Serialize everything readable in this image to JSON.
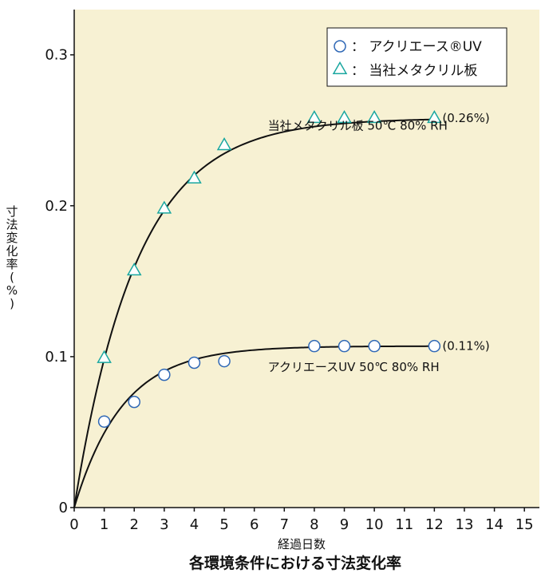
{
  "chart_data": {
    "type": "scatter",
    "title": "各環境条件における寸法変化率",
    "xlabel": "経過日数",
    "ylabel": "寸法変化率(%)",
    "xlim": [
      0,
      15.5
    ],
    "ylim": [
      0,
      0.33
    ],
    "x_ticks": [
      0,
      1,
      2,
      3,
      4,
      5,
      6,
      7,
      8,
      9,
      10,
      11,
      12,
      13,
      14,
      15
    ],
    "y_ticks": [
      0,
      0.1,
      0.2,
      0.3
    ],
    "y_tick_labels": [
      "0",
      "0.1",
      "0.2",
      "0.3"
    ],
    "grid": false,
    "legend_position": "top-right",
    "background_color": "#f7f1d3",
    "series": [
      {
        "name": "アクリエース®UV",
        "legend_label": "：  アクリエース®UV",
        "marker": "circle",
        "marker_color": "#2f68b6",
        "x": [
          1,
          2,
          3,
          4,
          5,
          8,
          9,
          10,
          12
        ],
        "y": [
          0.057,
          0.07,
          0.088,
          0.096,
          0.097,
          0.107,
          0.107,
          0.107,
          0.107
        ],
        "curve_plateau": 0.107,
        "curve_rate": 0.62,
        "end_label": "(0.11%)",
        "condition_label": "アクリエースUV 50℃ 80% RH"
      },
      {
        "name": "当社メタクリル板",
        "legend_label": "：  当社メタクリル板",
        "marker": "triangle",
        "marker_color": "#1aa7a0",
        "x": [
          1,
          2,
          3,
          4,
          5,
          8,
          9,
          10,
          12
        ],
        "y": [
          0.099,
          0.157,
          0.198,
          0.218,
          0.24,
          0.258,
          0.258,
          0.258,
          0.258
        ],
        "curve_plateau": 0.258,
        "curve_rate": 0.48,
        "end_label": "(0.26%)",
        "condition_label": "当社メタクリル板 50℃ 80% RH"
      }
    ]
  }
}
